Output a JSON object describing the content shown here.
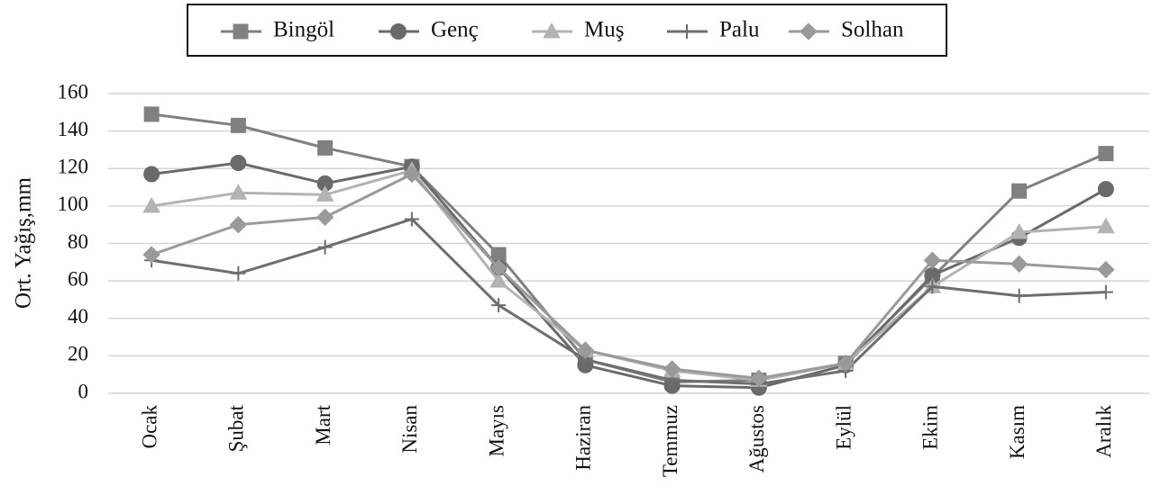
{
  "chart_data": {
    "type": "line",
    "y_label": "Ort. Yağış,mm",
    "categories": [
      "Ocak",
      "Şubat",
      "Mart",
      "Nisan",
      "Mayıs",
      "Haziran",
      "Temmuz",
      "Ağustos",
      "Eylül",
      "Ekim",
      "Kasım",
      "Aralık"
    ],
    "series": [
      {
        "name": "Bingöl",
        "color": "#808080",
        "marker": "square",
        "values": [
          149,
          143,
          131,
          121,
          74,
          18,
          6,
          7,
          16,
          62,
          108,
          128
        ]
      },
      {
        "name": "Genç",
        "color": "#6a6a6a",
        "marker": "circle",
        "values": [
          117,
          123,
          112,
          121,
          67,
          15,
          4,
          3,
          15,
          63,
          83,
          109
        ]
      },
      {
        "name": "Muş",
        "color": "#b3b3b3",
        "marker": "triangle",
        "values": [
          100,
          107,
          106,
          119,
          60,
          23,
          12,
          7,
          16,
          57,
          86,
          89
        ]
      },
      {
        "name": "Palu",
        "color": "#6e6e6e",
        "marker": "plus",
        "values": [
          71,
          64,
          78,
          93,
          47,
          18,
          7,
          5,
          12,
          57,
          52,
          54
        ]
      },
      {
        "name": "Solhan",
        "color": "#9a9a9a",
        "marker": "diamond",
        "values": [
          74,
          90,
          94,
          117,
          67,
          23,
          13,
          8,
          16,
          71,
          69,
          66
        ]
      }
    ],
    "ylim": [
      0,
      160
    ],
    "yticks": [
      0,
      20,
      40,
      60,
      80,
      100,
      120,
      140,
      160
    ],
    "grid": true
  }
}
